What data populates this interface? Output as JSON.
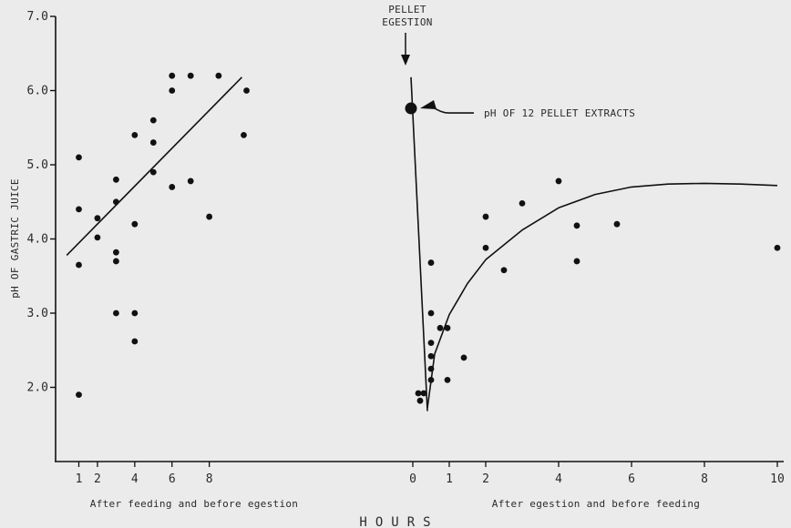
{
  "chart_data": {
    "type": "scatter",
    "title": "",
    "ylabel": "pH OF GASTRIC JUICE",
    "xlabel": "HOURS",
    "ylim": [
      1.0,
      7.0
    ],
    "yticks": [
      "7.0",
      "6.0",
      "5.0",
      "4.0",
      "3.0",
      "2.0"
    ],
    "segments": [
      {
        "label": "After feeding and before egestion",
        "xticks": [
          "1",
          "2",
          "4",
          "6",
          "8"
        ],
        "points": [
          [
            1,
            5.1
          ],
          [
            1,
            4.4
          ],
          [
            1,
            3.65
          ],
          [
            1,
            1.9
          ],
          [
            2,
            4.28
          ],
          [
            2,
            4.02
          ],
          [
            3,
            4.8
          ],
          [
            3,
            4.5
          ],
          [
            3,
            3.82
          ],
          [
            3,
            3.7
          ],
          [
            3,
            3.0
          ],
          [
            4,
            5.4
          ],
          [
            4,
            4.2
          ],
          [
            4,
            3.0
          ],
          [
            4,
            2.62
          ],
          [
            5,
            5.6
          ],
          [
            5,
            5.3
          ],
          [
            5,
            4.9
          ],
          [
            6,
            6.2
          ],
          [
            6,
            6.0
          ],
          [
            6,
            4.7
          ],
          [
            7,
            6.2
          ],
          [
            7,
            4.78
          ],
          [
            8,
            4.3
          ],
          [
            8.5,
            6.2
          ],
          [
            9.85,
            5.4
          ],
          [
            10,
            6.0
          ]
        ],
        "trend_line": [
          [
            0.35,
            3.78
          ],
          [
            9.75,
            6.18
          ]
        ]
      },
      {
        "label": "After egestion and before feeding",
        "xticks": [
          "0",
          "1",
          "2",
          "4",
          "6",
          "8",
          "10"
        ],
        "points": [
          [
            0.15,
            1.92
          ],
          [
            0.2,
            1.82
          ],
          [
            0.3,
            1.92
          ],
          [
            0.5,
            3.68
          ],
          [
            0.5,
            3.0
          ],
          [
            0.5,
            2.6
          ],
          [
            0.5,
            2.42
          ],
          [
            0.5,
            2.25
          ],
          [
            0.5,
            2.1
          ],
          [
            0.75,
            2.8
          ],
          [
            0.95,
            2.8
          ],
          [
            0.95,
            2.1
          ],
          [
            1.4,
            2.4
          ],
          [
            2,
            4.3
          ],
          [
            2,
            3.88
          ],
          [
            2.5,
            3.58
          ],
          [
            3,
            4.48
          ],
          [
            4,
            4.78
          ],
          [
            4.5,
            4.18
          ],
          [
            4.5,
            3.7
          ],
          [
            5.6,
            4.2
          ],
          [
            10,
            3.88
          ]
        ],
        "drop_line": [
          [
            -0.05,
            6.18
          ],
          [
            0.4,
            1.68
          ]
        ],
        "recovery_curve": [
          [
            0.4,
            1.72
          ],
          [
            0.6,
            2.45
          ],
          [
            1.0,
            2.98
          ],
          [
            1.5,
            3.4
          ],
          [
            2,
            3.72
          ],
          [
            3,
            4.12
          ],
          [
            4,
            4.42
          ],
          [
            5,
            4.6
          ],
          [
            6,
            4.7
          ],
          [
            7,
            4.74
          ],
          [
            8,
            4.75
          ],
          [
            9,
            4.74
          ],
          [
            10,
            4.72
          ]
        ]
      }
    ],
    "highlight": {
      "label": "pH OF 12 PELLET EXTRACTS",
      "x": -0.05,
      "y": 5.76
    },
    "annotations": [
      {
        "text_lines": [
          "PELLET",
          "EGESTION"
        ],
        "x": -0.2
      }
    ],
    "grid": false
  }
}
